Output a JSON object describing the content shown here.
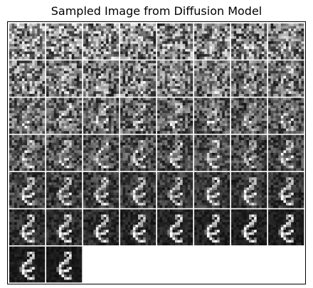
{
  "figure": {
    "title": "Sampled Image from Diffusion Model"
  },
  "grid": {
    "rows": 7,
    "cols": 8,
    "filled_tiles": 50,
    "content": "denoising sequence of a handwritten digit (noise to digit)",
    "background_color": "#ffffff",
    "tile_gap_color": "#ffffff"
  }
}
